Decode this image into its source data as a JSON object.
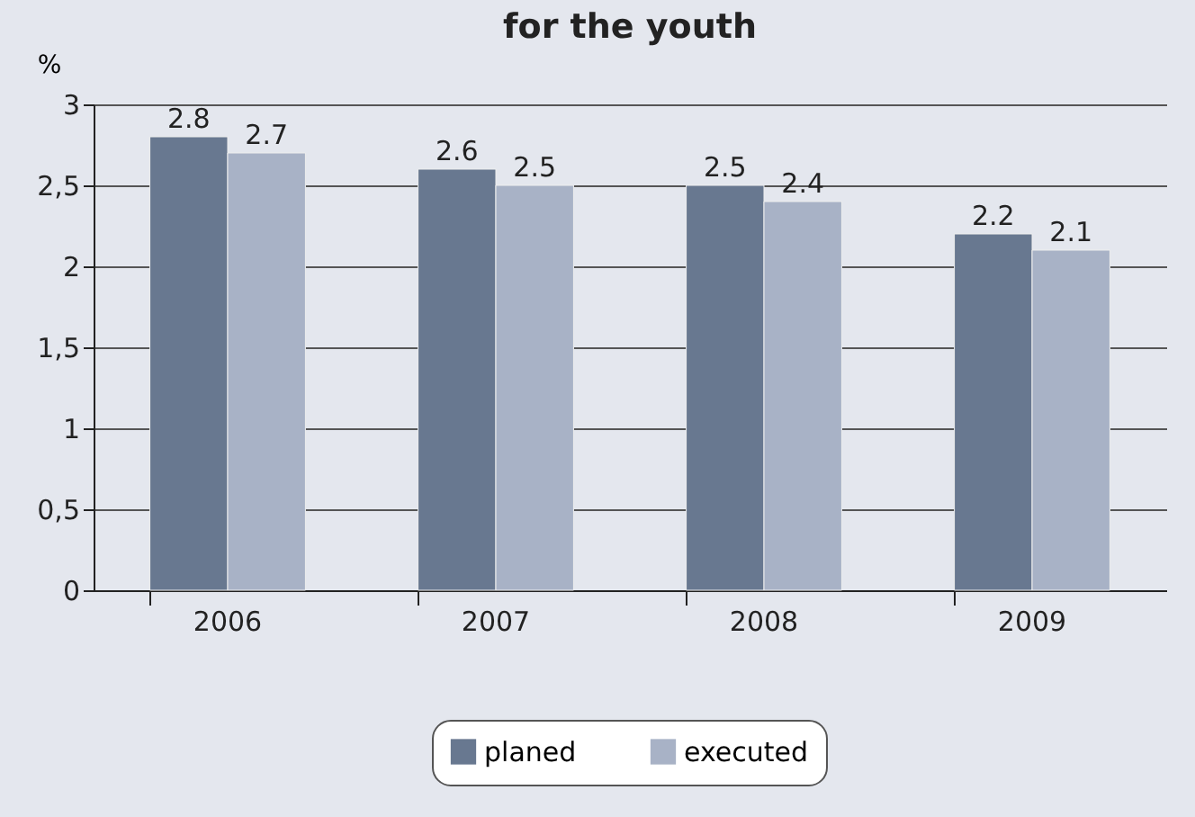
{
  "chart_data": {
    "type": "bar",
    "title": "for the youth",
    "ylabel": "%",
    "categories": [
      "2006",
      "2007",
      "2008",
      "2009"
    ],
    "series": [
      {
        "name": "planed",
        "color": "#687890",
        "values": [
          2.8,
          2.6,
          2.5,
          2.2
        ]
      },
      {
        "name": "executed",
        "color": "#a8b2c6",
        "values": [
          2.7,
          2.5,
          2.4,
          2.1
        ]
      }
    ],
    "ylim": [
      0,
      3
    ],
    "yticks": [
      0,
      {
        "value": 0.5,
        "label": "0,5"
      },
      1,
      {
        "value": 1.5,
        "label": "1,5"
      },
      2,
      {
        "value": 2.5,
        "label": "2,5"
      },
      3
    ],
    "grid": "y",
    "legend": "bottom",
    "data_labels": true
  }
}
